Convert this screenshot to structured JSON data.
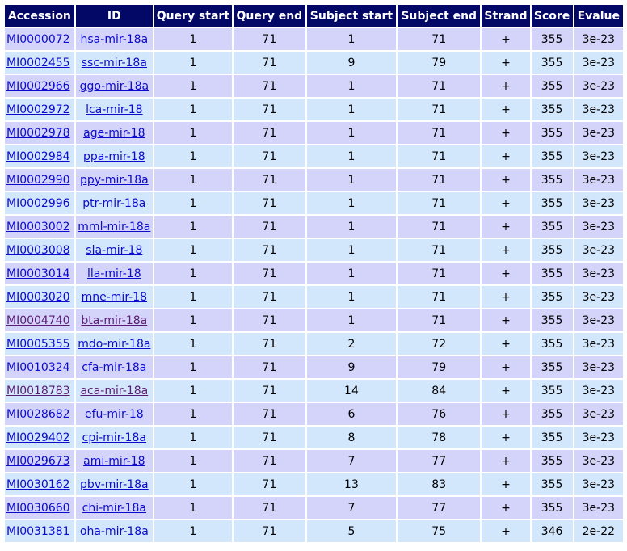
{
  "columns": [
    "Accession",
    "ID",
    "Query start",
    "Query end",
    "Subject start",
    "Subject end",
    "Strand",
    "Score",
    "Evalue"
  ],
  "rows": [
    {
      "accession": "MI0000072",
      "id": "hsa-mir-18a",
      "qstart": "1",
      "qend": "71",
      "sstart": "1",
      "send": "71",
      "strand": "+",
      "score": "355",
      "evalue": "3e-23",
      "visited": false
    },
    {
      "accession": "MI0002455",
      "id": "ssc-mir-18a",
      "qstart": "1",
      "qend": "71",
      "sstart": "9",
      "send": "79",
      "strand": "+",
      "score": "355",
      "evalue": "3e-23",
      "visited": false
    },
    {
      "accession": "MI0002966",
      "id": "ggo-mir-18a",
      "qstart": "1",
      "qend": "71",
      "sstart": "1",
      "send": "71",
      "strand": "+",
      "score": "355",
      "evalue": "3e-23",
      "visited": false
    },
    {
      "accession": "MI0002972",
      "id": "lca-mir-18",
      "qstart": "1",
      "qend": "71",
      "sstart": "1",
      "send": "71",
      "strand": "+",
      "score": "355",
      "evalue": "3e-23",
      "visited": false
    },
    {
      "accession": "MI0002978",
      "id": "age-mir-18",
      "qstart": "1",
      "qend": "71",
      "sstart": "1",
      "send": "71",
      "strand": "+",
      "score": "355",
      "evalue": "3e-23",
      "visited": false
    },
    {
      "accession": "MI0002984",
      "id": "ppa-mir-18",
      "qstart": "1",
      "qend": "71",
      "sstart": "1",
      "send": "71",
      "strand": "+",
      "score": "355",
      "evalue": "3e-23",
      "visited": false
    },
    {
      "accession": "MI0002990",
      "id": "ppy-mir-18a",
      "qstart": "1",
      "qend": "71",
      "sstart": "1",
      "send": "71",
      "strand": "+",
      "score": "355",
      "evalue": "3e-23",
      "visited": false
    },
    {
      "accession": "MI0002996",
      "id": "ptr-mir-18a",
      "qstart": "1",
      "qend": "71",
      "sstart": "1",
      "send": "71",
      "strand": "+",
      "score": "355",
      "evalue": "3e-23",
      "visited": false
    },
    {
      "accession": "MI0003002",
      "id": "mml-mir-18a",
      "qstart": "1",
      "qend": "71",
      "sstart": "1",
      "send": "71",
      "strand": "+",
      "score": "355",
      "evalue": "3e-23",
      "visited": false
    },
    {
      "accession": "MI0003008",
      "id": "sla-mir-18",
      "qstart": "1",
      "qend": "71",
      "sstart": "1",
      "send": "71",
      "strand": "+",
      "score": "355",
      "evalue": "3e-23",
      "visited": false
    },
    {
      "accession": "MI0003014",
      "id": "lla-mir-18",
      "qstart": "1",
      "qend": "71",
      "sstart": "1",
      "send": "71",
      "strand": "+",
      "score": "355",
      "evalue": "3e-23",
      "visited": false
    },
    {
      "accession": "MI0003020",
      "id": "mne-mir-18",
      "qstart": "1",
      "qend": "71",
      "sstart": "1",
      "send": "71",
      "strand": "+",
      "score": "355",
      "evalue": "3e-23",
      "visited": false
    },
    {
      "accession": "MI0004740",
      "id": "bta-mir-18a",
      "qstart": "1",
      "qend": "71",
      "sstart": "1",
      "send": "71",
      "strand": "+",
      "score": "355",
      "evalue": "3e-23",
      "visited": true
    },
    {
      "accession": "MI0005355",
      "id": "mdo-mir-18a",
      "qstart": "1",
      "qend": "71",
      "sstart": "2",
      "send": "72",
      "strand": "+",
      "score": "355",
      "evalue": "3e-23",
      "visited": false
    },
    {
      "accession": "MI0010324",
      "id": "cfa-mir-18a",
      "qstart": "1",
      "qend": "71",
      "sstart": "9",
      "send": "79",
      "strand": "+",
      "score": "355",
      "evalue": "3e-23",
      "visited": false
    },
    {
      "accession": "MI0018783",
      "id": "aca-mir-18a",
      "qstart": "1",
      "qend": "71",
      "sstart": "14",
      "send": "84",
      "strand": "+",
      "score": "355",
      "evalue": "3e-23",
      "visited": true
    },
    {
      "accession": "MI0028682",
      "id": "efu-mir-18",
      "qstart": "1",
      "qend": "71",
      "sstart": "6",
      "send": "76",
      "strand": "+",
      "score": "355",
      "evalue": "3e-23",
      "visited": false
    },
    {
      "accession": "MI0029402",
      "id": "cpi-mir-18a",
      "qstart": "1",
      "qend": "71",
      "sstart": "8",
      "send": "78",
      "strand": "+",
      "score": "355",
      "evalue": "3e-23",
      "visited": false
    },
    {
      "accession": "MI0029673",
      "id": "ami-mir-18",
      "qstart": "1",
      "qend": "71",
      "sstart": "7",
      "send": "77",
      "strand": "+",
      "score": "355",
      "evalue": "3e-23",
      "visited": false
    },
    {
      "accession": "MI0030162",
      "id": "pbv-mir-18a",
      "qstart": "1",
      "qend": "71",
      "sstart": "13",
      "send": "83",
      "strand": "+",
      "score": "355",
      "evalue": "3e-23",
      "visited": false
    },
    {
      "accession": "MI0030660",
      "id": "chi-mir-18a",
      "qstart": "1",
      "qend": "71",
      "sstart": "7",
      "send": "77",
      "strand": "+",
      "score": "355",
      "evalue": "3e-23",
      "visited": false
    },
    {
      "accession": "MI0031381",
      "id": "oha-mir-18a",
      "qstart": "1",
      "qend": "71",
      "sstart": "5",
      "send": "75",
      "strand": "+",
      "score": "346",
      "evalue": "2e-22",
      "visited": false
    }
  ],
  "colors": {
    "header_bg": "#030766",
    "row_even_bg": "#d4d4fb",
    "row_odd_bg": "#d2e6fc",
    "link": "#0b0bcc",
    "link_visited": "#5b1d73"
  }
}
